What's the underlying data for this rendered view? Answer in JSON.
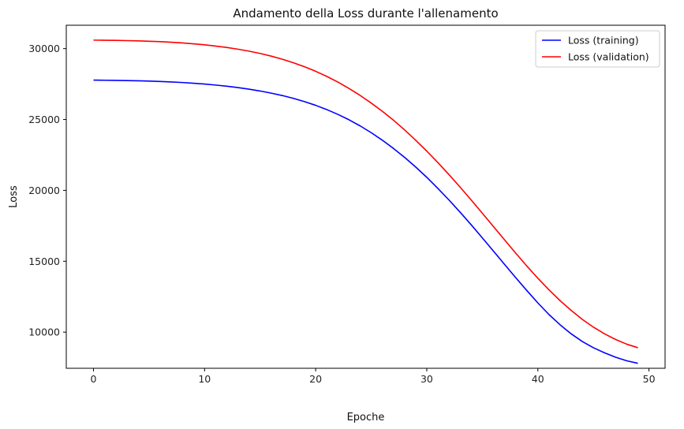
{
  "chart_data": {
    "type": "line",
    "title": "Andamento della Loss durante l'allenamento",
    "xlabel": "Epoche",
    "ylabel": "Loss",
    "xlim": [
      -2.45,
      51.45
    ],
    "ylim": [
      7450,
      31650
    ],
    "xticks": [
      0,
      10,
      20,
      30,
      40,
      50
    ],
    "yticks": [
      10000,
      15000,
      20000,
      25000,
      30000
    ],
    "grid": false,
    "legend_position": "top-right",
    "x": [
      0,
      1,
      2,
      3,
      4,
      5,
      6,
      7,
      8,
      9,
      10,
      11,
      12,
      13,
      14,
      15,
      16,
      17,
      18,
      19,
      20,
      21,
      22,
      23,
      24,
      25,
      26,
      27,
      28,
      29,
      30,
      31,
      32,
      33,
      34,
      35,
      36,
      37,
      38,
      39,
      40,
      41,
      42,
      43,
      44,
      45,
      46,
      47,
      48,
      49
    ],
    "series": [
      {
        "name": "Loss (training)",
        "color": "#0000ff",
        "values": [
          27780,
          27770,
          27760,
          27745,
          27730,
          27710,
          27680,
          27650,
          27610,
          27560,
          27500,
          27430,
          27350,
          27250,
          27140,
          27010,
          26860,
          26690,
          26490,
          26260,
          26000,
          25700,
          25360,
          24980,
          24550,
          24070,
          23540,
          22960,
          22330,
          21650,
          20920,
          20140,
          19320,
          18460,
          17570,
          16650,
          15720,
          14780,
          13850,
          12940,
          12060,
          11240,
          10520,
          9880,
          9340,
          8900,
          8540,
          8230,
          7980,
          7800
        ]
      },
      {
        "name": "Loss (validation)",
        "color": "#ff0000",
        "values": [
          30600,
          30590,
          30580,
          30565,
          30545,
          30520,
          30490,
          30450,
          30400,
          30340,
          30270,
          30180,
          30080,
          29960,
          29820,
          29660,
          29470,
          29250,
          29000,
          28720,
          28400,
          28040,
          27640,
          27190,
          26700,
          26160,
          25580,
          24950,
          24270,
          23540,
          22770,
          21960,
          21110,
          20230,
          19320,
          18390,
          17450,
          16510,
          15580,
          14670,
          13800,
          12980,
          12220,
          11530,
          10900,
          10350,
          9880,
          9480,
          9150,
          8900
        ]
      }
    ]
  }
}
